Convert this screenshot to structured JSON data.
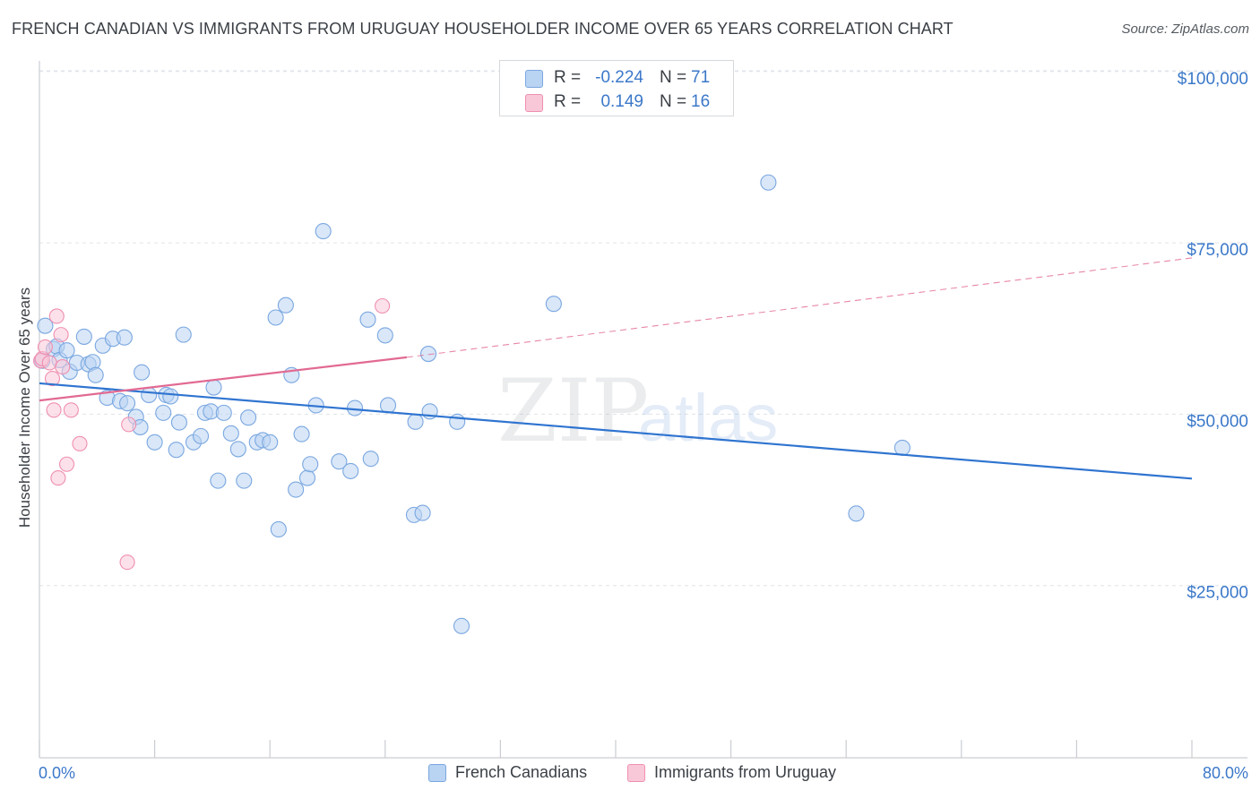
{
  "header": {
    "title": "FRENCH CANADIAN VS IMMIGRANTS FROM URUGUAY HOUSEHOLDER INCOME OVER 65 YEARS CORRELATION CHART",
    "source": "Source: ZipAtlas.com"
  },
  "watermark": {
    "zip": "ZIP",
    "atlas": "atlas"
  },
  "legend": {
    "rows": [
      {
        "r_label": "R =",
        "r_value": "-0.224",
        "n_label": "N =",
        "n_value": "71"
      },
      {
        "r_label": "R =",
        "r_value": "0.149",
        "n_label": "N =",
        "n_value": "16"
      }
    ],
    "bottom": [
      "French Canadians",
      "Immigrants from Uruguay"
    ]
  },
  "colors": {
    "blue_fill": "#b9d3f3",
    "blue_stroke": "#7aa7e0",
    "blue_line": "#2f74d0",
    "pink_fill": "#f9c8d8",
    "pink_stroke": "#ef8fb0",
    "pink_line": "#e26a92",
    "axis_text": "#3b78c9",
    "grid": "#dfe3e8"
  },
  "chart_data": {
    "type": "scatter",
    "title": "FRENCH CANADIAN VS IMMIGRANTS FROM URUGUAY HOUSEHOLDER INCOME OVER 65 YEARS CORRELATION CHART",
    "xlabel": "",
    "ylabel": "Householder Income Over 65 years",
    "xlim": [
      0,
      80
    ],
    "ylim": [
      0,
      105000
    ],
    "x_tick_labels": [
      "0.0%",
      "80.0%"
    ],
    "y_ticks": [
      25000,
      50000,
      75000,
      100000
    ],
    "y_tick_labels": [
      "$25,000",
      "$50,000",
      "$75,000",
      "$100,000"
    ],
    "grid": true,
    "series": [
      {
        "name": "French Canadians",
        "color": "#b9d3f3",
        "r": -0.224,
        "n": 71,
        "trend": {
          "x": [
            0,
            80
          ],
          "y": [
            54500,
            40600
          ],
          "style": "solid"
        },
        "points": [
          [
            0.2,
            57800
          ],
          [
            0.4,
            62900
          ],
          [
            1.0,
            59500
          ],
          [
            1.2,
            59900
          ],
          [
            1.4,
            57900
          ],
          [
            1.9,
            59300
          ],
          [
            2.1,
            56200
          ],
          [
            2.6,
            57500
          ],
          [
            3.1,
            61300
          ],
          [
            3.4,
            57300
          ],
          [
            3.7,
            57600
          ],
          [
            3.9,
            55700
          ],
          [
            4.4,
            60000
          ],
          [
            4.7,
            52400
          ],
          [
            5.1,
            61000
          ],
          [
            5.6,
            51900
          ],
          [
            5.9,
            61200
          ],
          [
            6.1,
            51600
          ],
          [
            6.7,
            49600
          ],
          [
            7.0,
            48100
          ],
          [
            7.1,
            56100
          ],
          [
            7.6,
            52800
          ],
          [
            8.0,
            45900
          ],
          [
            8.6,
            50200
          ],
          [
            8.8,
            52800
          ],
          [
            9.1,
            52600
          ],
          [
            9.5,
            44800
          ],
          [
            9.7,
            48800
          ],
          [
            10.0,
            61600
          ],
          [
            10.7,
            45900
          ],
          [
            11.2,
            46800
          ],
          [
            11.5,
            50200
          ],
          [
            11.9,
            50400
          ],
          [
            12.1,
            53900
          ],
          [
            12.4,
            40300
          ],
          [
            12.8,
            50200
          ],
          [
            13.3,
            47200
          ],
          [
            13.8,
            44900
          ],
          [
            14.2,
            40300
          ],
          [
            14.5,
            49500
          ],
          [
            15.1,
            45900
          ],
          [
            15.5,
            46200
          ],
          [
            16.0,
            45900
          ],
          [
            16.4,
            64100
          ],
          [
            16.6,
            33200
          ],
          [
            17.1,
            65900
          ],
          [
            17.5,
            55700
          ],
          [
            17.8,
            39000
          ],
          [
            18.2,
            47100
          ],
          [
            18.6,
            40700
          ],
          [
            18.8,
            42700
          ],
          [
            19.2,
            51300
          ],
          [
            19.7,
            76700
          ],
          [
            20.8,
            43100
          ],
          [
            21.6,
            41700
          ],
          [
            21.9,
            50900
          ],
          [
            22.8,
            63800
          ],
          [
            23.0,
            43500
          ],
          [
            24.0,
            61500
          ],
          [
            24.2,
            51300
          ],
          [
            26.0,
            35300
          ],
          [
            26.1,
            48900
          ],
          [
            26.6,
            35600
          ],
          [
            27.0,
            58800
          ],
          [
            27.1,
            50400
          ],
          [
            29.0,
            48900
          ],
          [
            29.3,
            19100
          ],
          [
            35.7,
            66100
          ],
          [
            50.6,
            83800
          ],
          [
            56.7,
            35500
          ],
          [
            59.9,
            45100
          ]
        ]
      },
      {
        "name": "Immigrants from Uruguay",
        "color": "#f9c8d8",
        "r": 0.149,
        "n": 16,
        "trend": {
          "x": [
            0,
            25.5
          ],
          "y": [
            52000,
            58300
          ],
          "style": "solid",
          "extension": {
            "x": [
              25.5,
              80
            ],
            "y": [
              58300,
              72800
            ],
            "style": "dashed"
          }
        },
        "points": [
          [
            0.1,
            57800
          ],
          [
            0.2,
            58100
          ],
          [
            0.4,
            59800
          ],
          [
            0.7,
            57500
          ],
          [
            0.9,
            55200
          ],
          [
            1.0,
            50600
          ],
          [
            1.2,
            64300
          ],
          [
            1.3,
            40700
          ],
          [
            1.5,
            61600
          ],
          [
            1.6,
            56900
          ],
          [
            1.9,
            42700
          ],
          [
            2.2,
            50600
          ],
          [
            2.8,
            45700
          ],
          [
            6.2,
            48500
          ],
          [
            6.1,
            28400
          ],
          [
            23.8,
            65800
          ]
        ]
      }
    ]
  }
}
